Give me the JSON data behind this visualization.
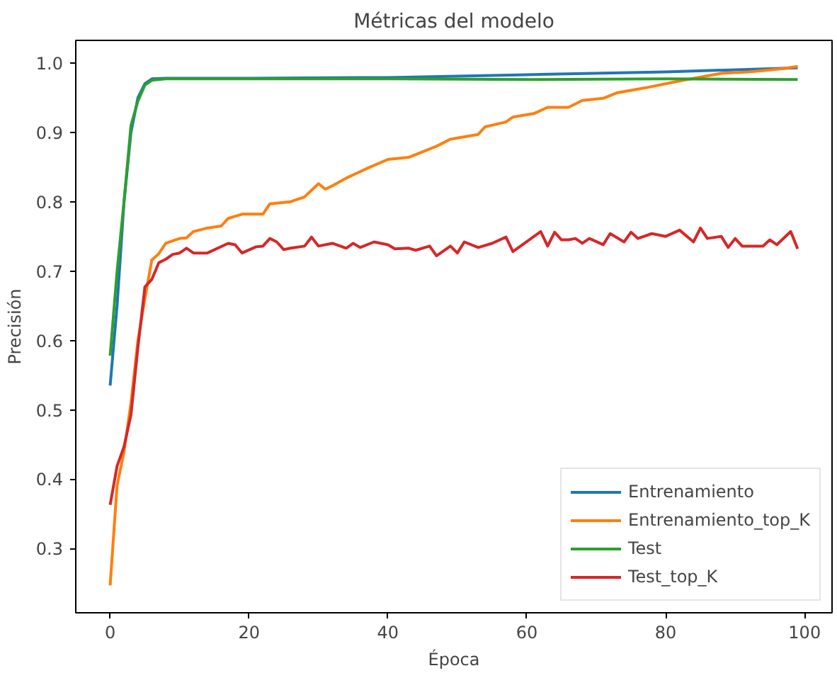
{
  "chart_data": {
    "type": "line",
    "title": "Métricas del modelo",
    "xlabel": "Época",
    "ylabel": "Precisión",
    "xlim": [
      -4.95,
      103.95
    ],
    "ylim": [
      0.2075,
      1.0325
    ],
    "xticks": [
      0,
      20,
      40,
      60,
      80,
      100
    ],
    "yticks": [
      0.3,
      0.4,
      0.5,
      0.6,
      0.7,
      0.8,
      0.9,
      {
        "value": 1,
        "label": "1.0"
      }
    ],
    "grid": false,
    "legend": "bottom right",
    "marker": "none",
    "line_style": "solid",
    "series": [
      {
        "name": "Entrenamiento",
        "color": "#1f77b4",
        "x": [
          0,
          1,
          2,
          3,
          4,
          5,
          6,
          8,
          10,
          20,
          40,
          60,
          80,
          99
        ],
        "values": [
          0.535,
          0.65,
          0.8,
          0.9,
          0.95,
          0.97,
          0.977,
          0.978,
          0.978,
          0.978,
          0.979,
          0.983,
          0.987,
          0.993
        ]
      },
      {
        "name": "Entrenamiento_top_K",
        "color": "#ff7f0e",
        "x": [
          0,
          1,
          2,
          3,
          4,
          5,
          6,
          7,
          8,
          10,
          11,
          12,
          14,
          16,
          17,
          19,
          22,
          23,
          26,
          28,
          30,
          31,
          32,
          34,
          37,
          40,
          43,
          47,
          49,
          53,
          54,
          57,
          58,
          61,
          63,
          66,
          68,
          71,
          73,
          77,
          82,
          88,
          92,
          97,
          99
        ],
        "values": [
          0.247,
          0.391,
          0.44,
          0.51,
          0.6,
          0.66,
          0.716,
          0.725,
          0.74,
          0.747,
          0.748,
          0.757,
          0.762,
          0.765,
          0.776,
          0.782,
          0.782,
          0.797,
          0.8,
          0.807,
          0.826,
          0.818,
          0.823,
          0.834,
          0.848,
          0.861,
          0.864,
          0.88,
          0.89,
          0.897,
          0.908,
          0.915,
          0.922,
          0.927,
          0.936,
          0.936,
          0.946,
          0.949,
          0.957,
          0.964,
          0.974,
          0.985,
          0.987,
          0.992,
          0.995
        ]
      },
      {
        "name": "Test",
        "color": "#2ca02c",
        "x": [
          0,
          1,
          2,
          3,
          4,
          5,
          6,
          8,
          20,
          40,
          60,
          80,
          99
        ],
        "values": [
          0.578,
          0.7,
          0.8,
          0.91,
          0.945,
          0.968,
          0.975,
          0.977,
          0.977,
          0.977,
          0.976,
          0.977,
          0.976
        ]
      },
      {
        "name": "Test_top_K",
        "color": "#d62728",
        "x": [
          0,
          1,
          2,
          3,
          4,
          5,
          6,
          7,
          8,
          9,
          10,
          11,
          12,
          14,
          17,
          18,
          19,
          21,
          22,
          23,
          24,
          25,
          26,
          28,
          29,
          30,
          32,
          34,
          35,
          36,
          38,
          40,
          41,
          43,
          44,
          46,
          47,
          49,
          50,
          51,
          53,
          55,
          57,
          58,
          62,
          63,
          64,
          65,
          66,
          67,
          68,
          69,
          71,
          72,
          74,
          75,
          76,
          78,
          80,
          82,
          84,
          85,
          86,
          88,
          89,
          90,
          91,
          94,
          95,
          96,
          98,
          99
        ],
        "values": [
          0.363,
          0.419,
          0.447,
          0.493,
          0.59,
          0.677,
          0.688,
          0.712,
          0.717,
          0.724,
          0.726,
          0.733,
          0.726,
          0.726,
          0.74,
          0.738,
          0.726,
          0.735,
          0.736,
          0.747,
          0.742,
          0.731,
          0.733,
          0.736,
          0.749,
          0.736,
          0.74,
          0.733,
          0.74,
          0.734,
          0.742,
          0.738,
          0.732,
          0.733,
          0.73,
          0.736,
          0.722,
          0.736,
          0.726,
          0.742,
          0.734,
          0.74,
          0.749,
          0.728,
          0.757,
          0.736,
          0.756,
          0.745,
          0.745,
          0.747,
          0.74,
          0.747,
          0.738,
          0.754,
          0.742,
          0.756,
          0.747,
          0.754,
          0.75,
          0.759,
          0.742,
          0.762,
          0.747,
          0.75,
          0.734,
          0.747,
          0.736,
          0.736,
          0.745,
          0.738,
          0.757,
          0.732
        ]
      }
    ]
  }
}
